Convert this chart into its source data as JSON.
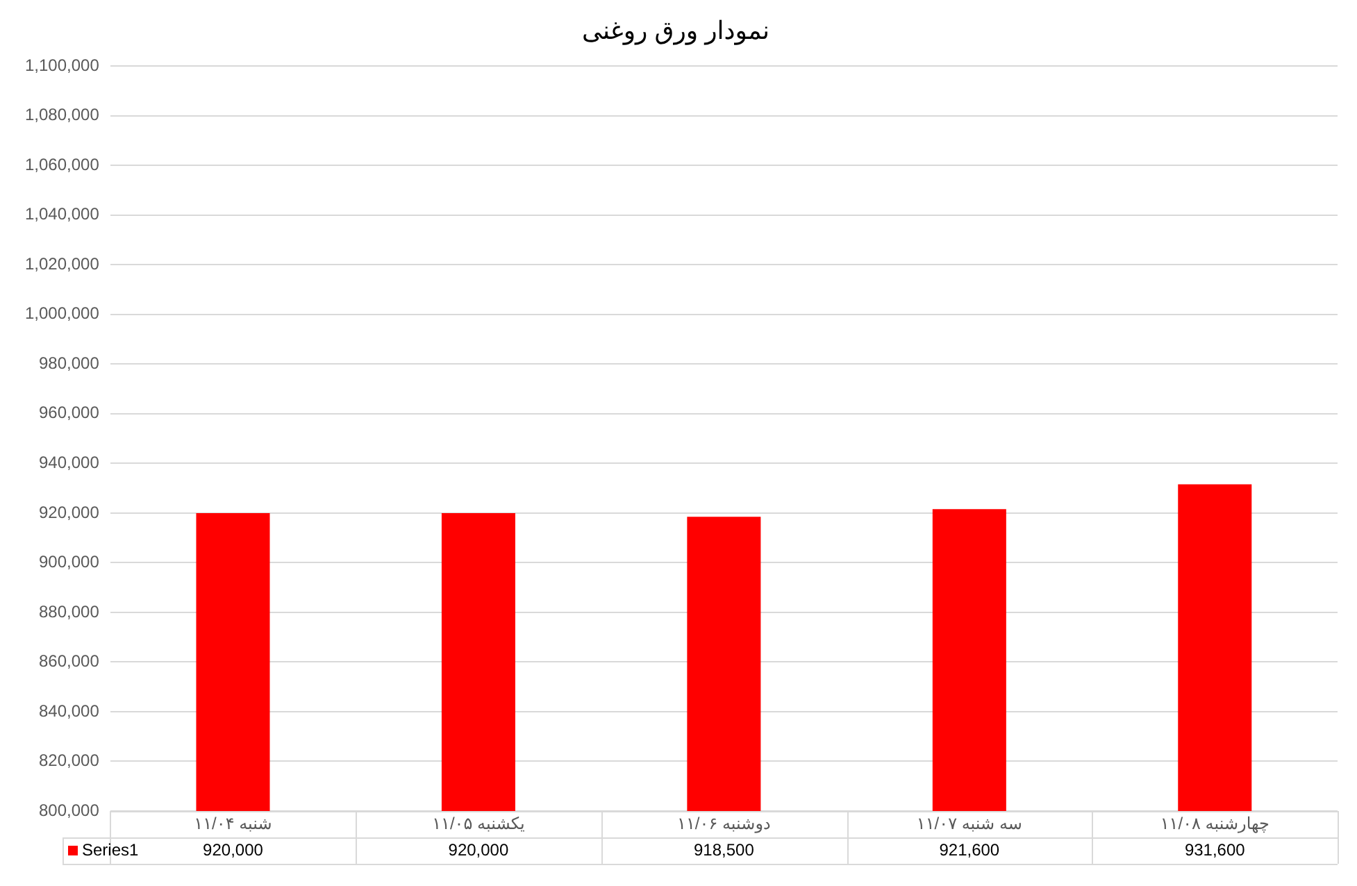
{
  "chart_data": {
    "type": "bar",
    "title": "نمودار ورق روغنی",
    "categories": [
      "شنبه ۱۱/۰۴",
      "یکشنبه ۱۱/۰۵",
      "دوشنبه ۱۱/۰۶",
      "سه شنبه ۱۱/۰۷",
      "چهارشنبه ۱۱/۰۸"
    ],
    "series": [
      {
        "name": "Series1",
        "color": "#ff0000",
        "values": [
          920000,
          920000,
          918500,
          921600,
          931600
        ],
        "value_labels": [
          "920,000",
          "920,000",
          "918,500",
          "921,600",
          "931,600"
        ]
      }
    ],
    "ylim": [
      800000,
      1100000
    ],
    "yticks": [
      {
        "value": 800000,
        "label": "800,000"
      },
      {
        "value": 820000,
        "label": "820,000"
      },
      {
        "value": 840000,
        "label": "840,000"
      },
      {
        "value": 860000,
        "label": "860,000"
      },
      {
        "value": 880000,
        "label": "880,000"
      },
      {
        "value": 900000,
        "label": "900,000"
      },
      {
        "value": 920000,
        "label": "920,000"
      },
      {
        "value": 940000,
        "label": "940,000"
      },
      {
        "value": 960000,
        "label": "960,000"
      },
      {
        "value": 980000,
        "label": "980,000"
      },
      {
        "value": 1000000,
        "label": "1,000,000"
      },
      {
        "value": 1020000,
        "label": "1,020,000"
      },
      {
        "value": 1040000,
        "label": "1,040,000"
      },
      {
        "value": 1060000,
        "label": "1,060,000"
      },
      {
        "value": 1080000,
        "label": "1,080,000"
      },
      {
        "value": 1100000,
        "label": "1,100,000"
      }
    ],
    "grid": "y",
    "legend": "bottom"
  }
}
